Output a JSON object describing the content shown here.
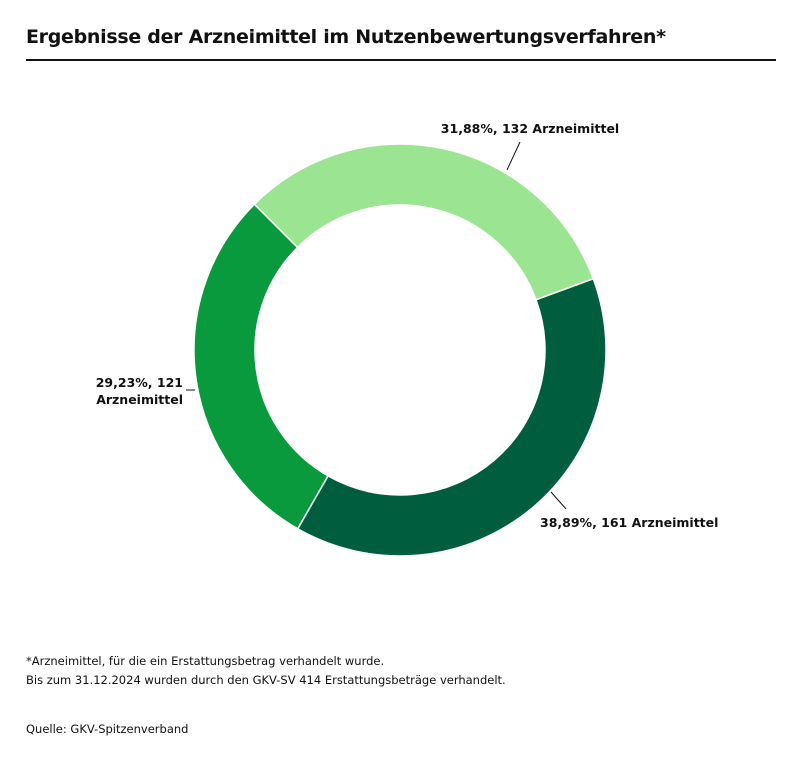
{
  "title": "Ergebnisse der Arzneimittel im Nutzenbewertungsverfahren*",
  "chart_data": {
    "type": "pie",
    "variant": "donut",
    "title": "Ergebnisse der Arzneimittel im Nutzenbewertungsverfahren*",
    "slices": [
      {
        "label": "31,88%, 132 Arzneimittel",
        "percent": 31.88,
        "value": 132,
        "color": "#9be592"
      },
      {
        "label": "38,89%, 161 Arzneimittel",
        "percent": 38.89,
        "value": 161,
        "color": "#005e3f"
      },
      {
        "label_lines": [
          "29,23%, 121",
          "Arzneimittel"
        ],
        "percent": 29.23,
        "value": 121,
        "color": "#089a3c"
      }
    ]
  },
  "footnotes": {
    "line1": "*Arzneimittel, für die ein Erstattungsbetrag verhandelt wurde.",
    "line2": "Bis zum 31.12.2024 wurden durch den GKV-SV 414 Erstattungsbeträge verhandelt.",
    "source": "Quelle: GKV-Spitzenverband"
  }
}
